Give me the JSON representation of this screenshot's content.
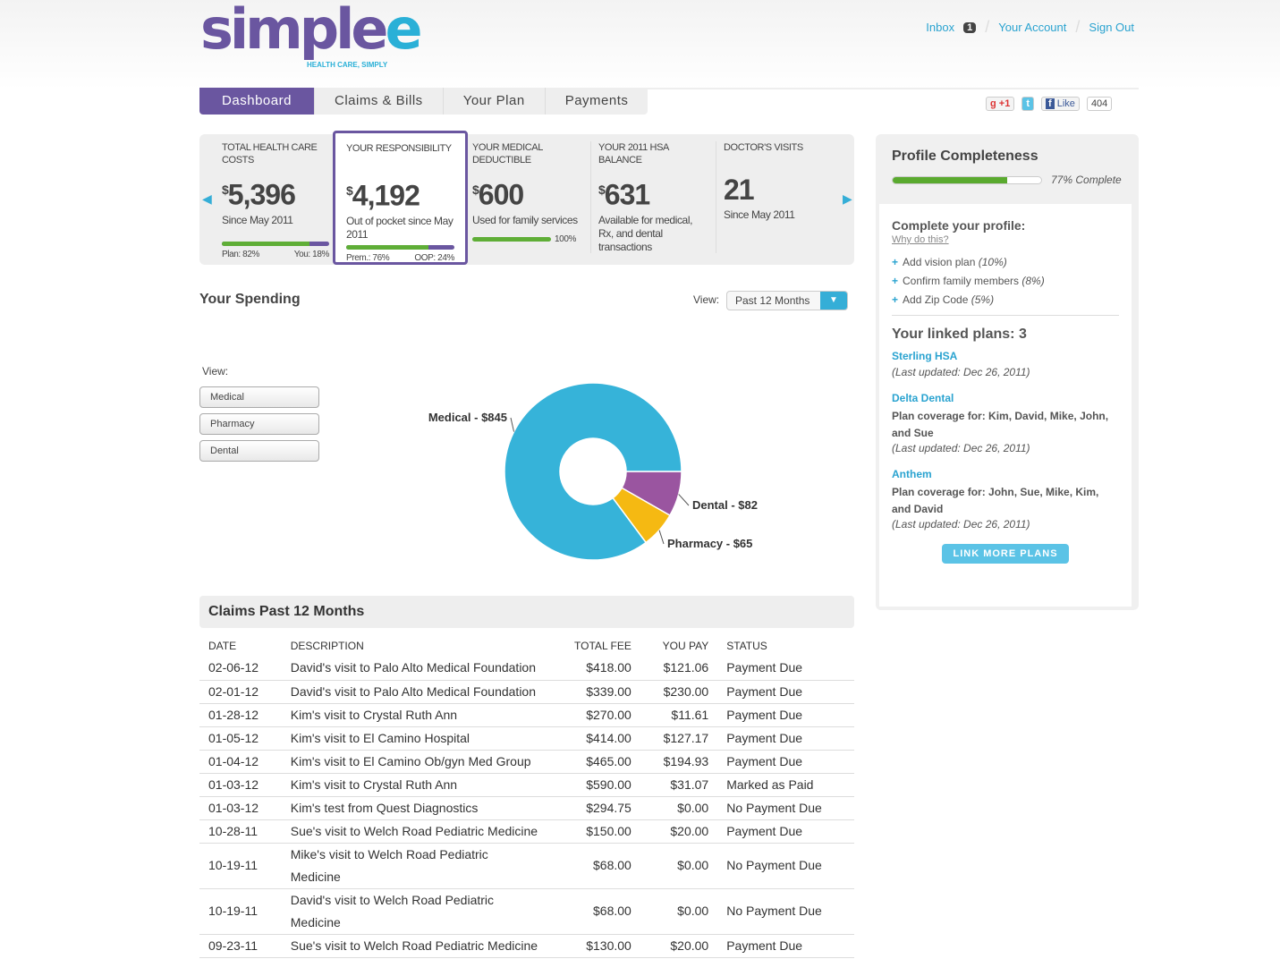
{
  "brand": {
    "logo": "simplee",
    "tagline": "HEALTH CARE, SIMPLY"
  },
  "top": {
    "inbox": "Inbox",
    "inbox_count": "1",
    "account": "Your Account",
    "signout": "Sign Out"
  },
  "nav": [
    "Dashboard",
    "Claims & Bills",
    "Your Plan",
    "Payments"
  ],
  "social": {
    "gplus": "+1",
    "like": "Like",
    "like_count": "404"
  },
  "stats": [
    {
      "title": "TOTAL HEALTH CARE COSTS",
      "value": "5,396",
      "currency": "$",
      "desc": "Since May 2011",
      "bar": 0.82,
      "left": "Plan: 82%",
      "right": "You: 18%"
    },
    {
      "title": "YOUR RESPONSIBILITY",
      "value": "4,192",
      "currency": "$",
      "desc": "Out of pocket since May 2011",
      "bar": 0.76,
      "left": "Prem.: 76%",
      "right": "OOP: 24%"
    },
    {
      "title": "YOUR MEDICAL DEDUCTIBLE",
      "value": "600",
      "currency": "$",
      "desc": "Used for family services",
      "bar": 1.0,
      "right": "100%"
    },
    {
      "title": "YOUR 2011 HSA BALANCE",
      "value": "631",
      "currency": "$",
      "desc": "Available for medical, Rx, and dental transactions"
    },
    {
      "title": "DOCTOR'S VISITS",
      "value": "21",
      "desc": "Since May 2011"
    }
  ],
  "spending": {
    "title": "Your Spending",
    "view_label": "View:",
    "view_value": "Past 12 Months",
    "filter_label": "View:",
    "filters": [
      "Medical",
      "Pharmacy",
      "Dental"
    ],
    "chart_data": {
      "type": "pie",
      "categories": [
        "Medical",
        "Dental",
        "Pharmacy"
      ],
      "values": [
        845,
        82,
        65
      ],
      "labels": [
        "Medical - $845",
        "Dental - $82",
        "Pharmacy - $65"
      ],
      "colors": [
        "#36b3d9",
        "#9a55a0",
        "#f5b912"
      ]
    }
  },
  "claims": {
    "title": "Claims Past 12 Months",
    "headers": [
      "DATE",
      "DESCRIPTION",
      "TOTAL FEE",
      "YOU PAY",
      "STATUS"
    ],
    "rows": [
      [
        "02-06-12",
        "David's visit to Palo Alto Medical Foundation",
        "$418.00",
        "$121.06",
        "Payment Due"
      ],
      [
        "02-01-12",
        "David's visit to Palo Alto Medical Foundation",
        "$339.00",
        "$230.00",
        "Payment Due"
      ],
      [
        "01-28-12",
        "Kim's visit to Crystal Ruth Ann",
        "$270.00",
        "$11.61",
        "Payment Due"
      ],
      [
        "01-05-12",
        "Kim's visit to El Camino Hospital",
        "$414.00",
        "$127.17",
        "Payment Due"
      ],
      [
        "01-04-12",
        "Kim's visit to El Camino Ob/gyn Med Group",
        "$465.00",
        "$194.93",
        "Payment Due"
      ],
      [
        "01-03-12",
        "Kim's visit to Crystal Ruth Ann",
        "$590.00",
        "$31.07",
        "Marked as Paid"
      ],
      [
        "01-03-12",
        "Kim's test from Quest Diagnostics",
        "$294.75",
        "$0.00",
        "No Payment Due"
      ],
      [
        "10-28-11",
        "Sue's visit to Welch Road Pediatric Medicine",
        "$150.00",
        "$20.00",
        "Payment Due"
      ],
      [
        "10-19-11",
        "Mike's visit to Welch Road Pediatric Medicine",
        "$68.00",
        "$0.00",
        "No Payment Due"
      ],
      [
        "10-19-11",
        "David's visit to Welch Road Pediatric Medicine",
        "$68.00",
        "$0.00",
        "No Payment Due"
      ],
      [
        "09-23-11",
        "Sue's visit to Welch Road Pediatric Medicine",
        "$130.00",
        "$20.00",
        "Payment Due"
      ]
    ]
  },
  "profile": {
    "title": "Profile Completeness",
    "complete": 0.77,
    "complete_label": "77% Complete",
    "cta": "Complete your profile:",
    "why": "Why do this?",
    "tasks": [
      {
        "label": "Add vision plan",
        "pct": "(10%)"
      },
      {
        "label": "Confirm family members",
        "pct": "(8%)"
      },
      {
        "label": "Add Zip Code",
        "pct": "(5%)"
      }
    ],
    "linked_title": "Your linked plans: 3",
    "plans": [
      {
        "name": "Sterling HSA",
        "updated": "(Last updated: Dec 26, 2011)"
      },
      {
        "name": "Delta Dental",
        "coverage": "Plan coverage for: Kim, David, Mike, John, and Sue",
        "updated": "(Last updated: Dec 26, 2011)"
      },
      {
        "name": "Anthem",
        "coverage": "Plan coverage for: John, Sue, Mike, Kim, and David",
        "updated": "(Last updated: Dec 26, 2011)"
      }
    ],
    "link_more": "LINK MORE PLANS"
  }
}
